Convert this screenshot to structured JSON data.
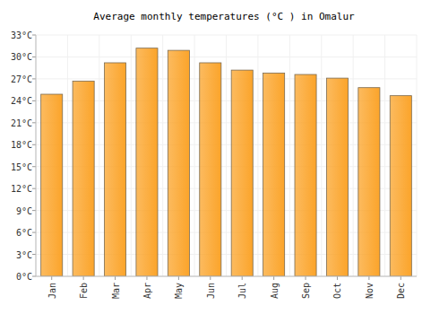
{
  "chart_data": {
    "type": "bar",
    "title": "Average monthly temperatures (°C ) in Omalur",
    "categories": [
      "Jan",
      "Feb",
      "Mar",
      "Apr",
      "May",
      "Jun",
      "Jul",
      "Aug",
      "Sep",
      "Oct",
      "Nov",
      "Dec"
    ],
    "values": [
      24.9,
      26.7,
      29.2,
      31.2,
      30.9,
      29.2,
      28.2,
      27.8,
      27.6,
      27.1,
      25.8,
      24.7
    ],
    "color": "#fba42a",
    "ylim": [
      0,
      33
    ],
    "yticks": [
      {
        "value": 0,
        "label": "0°C"
      },
      {
        "value": 3,
        "label": "3°C"
      },
      {
        "value": 6,
        "label": "6°C"
      },
      {
        "value": 9,
        "label": "9°C"
      },
      {
        "value": 12,
        "label": "12°C"
      },
      {
        "value": 15,
        "label": "15°C"
      },
      {
        "value": 18,
        "label": "18°C"
      },
      {
        "value": 21,
        "label": "21°C"
      },
      {
        "value": 24,
        "label": "24°C"
      },
      {
        "value": 27,
        "label": "27°C"
      },
      {
        "value": 30,
        "label": "30°C"
      },
      {
        "value": 33,
        "label": "33°C"
      }
    ],
    "grid": true
  }
}
